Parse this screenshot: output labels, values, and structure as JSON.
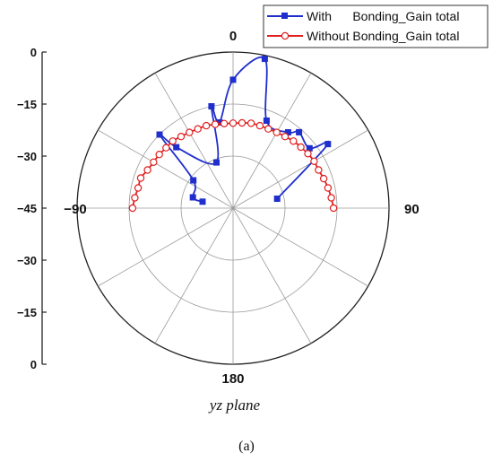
{
  "chart_data": {
    "type": "polar-line",
    "xlabel": "yz plane",
    "caption_text": "(a)",
    "angle_labels": [
      "0",
      "90",
      "180",
      "−90"
    ],
    "radial_ticks": [
      "0",
      "−15",
      "−30",
      "−45"
    ],
    "rlim": [
      -45,
      0
    ],
    "grid": true,
    "legend_position": "top-right",
    "series": [
      {
        "name": "With      Bonding_Gain total",
        "color": "#1f2ecc",
        "marker": "square",
        "angles_deg": [
          -78,
          -75,
          -55,
          -45,
          -43,
          -20,
          -12,
          -9,
          0,
          12,
          21,
          36,
          41,
          52,
          56,
          78
        ],
        "values": [
          -36,
          -33,
          -31,
          -15,
          -21,
          -31,
          -15,
          -20,
          -8,
          -1,
          -18,
          -18,
          -16,
          -17,
          -12,
          -32
        ]
      },
      {
        "name": "Without Bonding_Gain total",
        "color": "#e02020",
        "marker": "open-circle",
        "angles_deg": [
          -90,
          -84,
          -78,
          -72,
          -66,
          -60,
          -54,
          -48,
          -42,
          -36,
          -30,
          -24,
          -18,
          -12,
          -6,
          0,
          6,
          12,
          18,
          24,
          30,
          36,
          42,
          48,
          54,
          60,
          66,
          72,
          78,
          84,
          90
        ],
        "values": [
          -16,
          -16.5,
          -17,
          -17,
          -18,
          -18.5,
          -18.7,
          -19,
          -19,
          -19.5,
          -19.8,
          -20,
          -20,
          -20.3,
          -20.5,
          -20.5,
          -20.3,
          -20,
          -20,
          -20,
          -19.8,
          -19.5,
          -19,
          -18.7,
          -18.3,
          -18,
          -18,
          -17.5,
          -17,
          -16.5,
          -16
        ]
      }
    ]
  }
}
